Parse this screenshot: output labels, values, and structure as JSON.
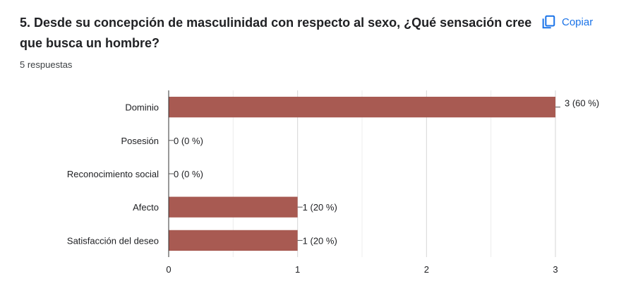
{
  "question": {
    "title": "5. Desde su concepción de masculinidad con respecto al sexo, ¿Qué sensación cree que busca un hombre?",
    "responses": "5 respuestas",
    "copy_label": "Copiar",
    "copy_icon": "copy-icon"
  },
  "chart_data": {
    "type": "bar",
    "orientation": "horizontal",
    "categories": [
      "Dominio",
      "Posesión",
      "Reconocimiento social",
      "Afecto",
      "Satisfacción del deseo"
    ],
    "values": [
      3,
      0,
      0,
      1,
      1
    ],
    "value_labels": [
      "3 (60 %)",
      "0 (0 %)",
      "0 (0 %)",
      "1 (20 %)",
      "1 (20 %)"
    ],
    "xlim": [
      0,
      3
    ],
    "xticks": [
      "0",
      "1",
      "2",
      "3"
    ],
    "grid": true,
    "bar_color": "#a85a52"
  }
}
